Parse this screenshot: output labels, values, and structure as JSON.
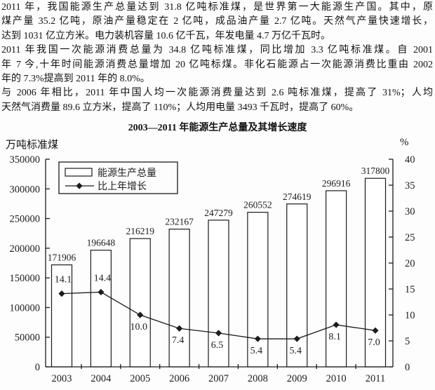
{
  "document": {
    "lines": [
      "2011 年，我国能源生产总量达到 31.8 亿吨标准煤，是世界第一大能源生产国。其中，原",
      "煤产量 35.2 亿吨，原油产量稳定在 2 亿吨，成品油产量 2.7 亿吨。天然气产量快速增长，",
      "达到 1031 亿立方米。电力装机容量 10.6 亿千瓦，年发电量 4.7 万亿千瓦时。",
      "2011 年我国一次能源消费总量为 34.8 亿吨标准煤，同比增加 3.3 亿吨标准煤。自 2001",
      "年 7 今,十年时间能源消费总量增加 20 亿吨标煤。非化石能源占一次能源消费比重由 2002",
      "年的 7.3%提高到 2011 年的 8.0%。",
      "与 2006 年相比，2011 年中国人均一次能源消费量达到 2.6 吨标准煤，提高了 31%；人均",
      "天然气消费量 89.6 立方米，提高了 110%；人均用电量 3493 千瓦时，提高了 60%。"
    ]
  },
  "chart_data": {
    "type": "bar",
    "subtype": "bar-line combo with dual value axes",
    "title": "2003—2011 年能源生产总量及其增长速度",
    "categories": [
      "2003",
      "2004",
      "2005",
      "2006",
      "2007",
      "2008",
      "2009",
      "2010",
      "2011"
    ],
    "series": [
      {
        "name": "能源生产总量",
        "type": "bar",
        "axis": "left",
        "values": [
          171906,
          196648,
          216219,
          232167,
          247279,
          260552,
          274619,
          296916,
          317800
        ]
      },
      {
        "name": "比上年增长",
        "type": "line",
        "axis": "right",
        "marker": "diamond",
        "values": [
          14.1,
          14.4,
          10.0,
          7.4,
          6.5,
          5.4,
          5.4,
          8.1,
          7.0
        ],
        "labels": [
          "14.1",
          "14.4",
          "10.0",
          "7.4",
          "6.5",
          "5.4",
          "5.4",
          "8.1",
          "7.0"
        ]
      }
    ],
    "left_axis": {
      "unit": "万吨标准煤",
      "min": 0,
      "max": 350000,
      "step": 50000,
      "ticks": [
        "0",
        "50000",
        "100000",
        "150000",
        "200000",
        "250000",
        "300000",
        "350000"
      ]
    },
    "right_axis": {
      "unit": "%",
      "min": 0,
      "max": 40,
      "step": 5,
      "ticks": [
        "0",
        "5",
        "10",
        "15",
        "20",
        "25",
        "30",
        "35",
        "40"
      ]
    },
    "legend": {
      "position": "top-left-inside",
      "entries": [
        "能源生产总量",
        "比上年增长"
      ]
    },
    "grid": false,
    "bar_fill": "#ffffff",
    "stroke_color": "#1c1c1c"
  }
}
